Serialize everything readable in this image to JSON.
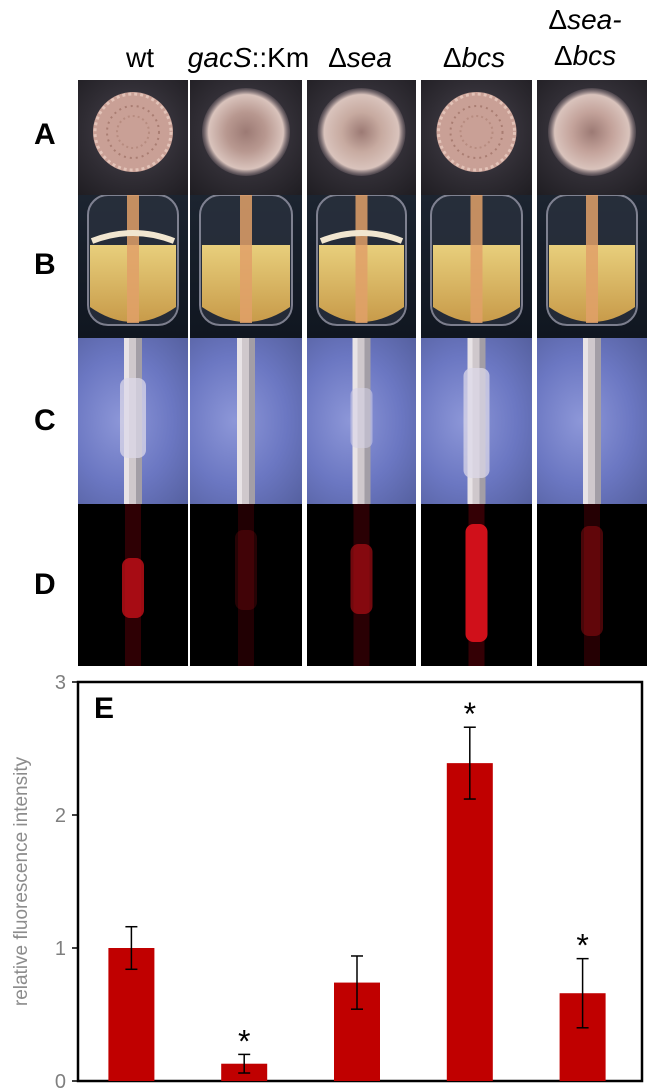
{
  "columns": [
    {
      "id": "wt",
      "parts": [
        {
          "t": "wt",
          "i": false
        }
      ]
    },
    {
      "id": "gacS",
      "parts": [
        {
          "t": "gacS",
          "i": true
        },
        {
          "t": "::Km",
          "i": false
        }
      ]
    },
    {
      "id": "sea",
      "parts": [
        {
          "t": "Δ",
          "i": false
        },
        {
          "t": "sea",
          "i": true
        }
      ]
    },
    {
      "id": "bcs",
      "parts": [
        {
          "t": "Δ",
          "i": false
        },
        {
          "t": "bcs",
          "i": true
        }
      ]
    },
    {
      "id": "sea-bcs",
      "line1": [
        {
          "t": "Δ",
          "i": false
        },
        {
          "t": "sea-",
          "i": true
        }
      ],
      "line2": [
        {
          "t": "Δ",
          "i": false
        },
        {
          "t": "bcs",
          "i": true
        }
      ]
    }
  ],
  "row_labels": [
    "A",
    "B",
    "C",
    "D"
  ],
  "colony_color": "#c9a096",
  "fluorescence_color": "#d0101a",
  "chart_data": {
    "type": "bar",
    "panel_label": "E",
    "ylabel": "relative fluorescence intensity",
    "ylim": [
      0,
      3
    ],
    "yticks": [
      "0",
      "1",
      "2",
      "3"
    ],
    "categories": [
      "wt",
      "gacS::Km",
      "Δsea",
      "Δbcs",
      "Δsea-Δbcs"
    ],
    "values": [
      1.0,
      0.13,
      0.74,
      2.39,
      0.66
    ],
    "errors": [
      0.16,
      0.07,
      0.2,
      0.27,
      0.26
    ],
    "significance": [
      "",
      "*",
      "",
      "*",
      "*"
    ],
    "bar_color": "#c00000",
    "grid": false
  }
}
